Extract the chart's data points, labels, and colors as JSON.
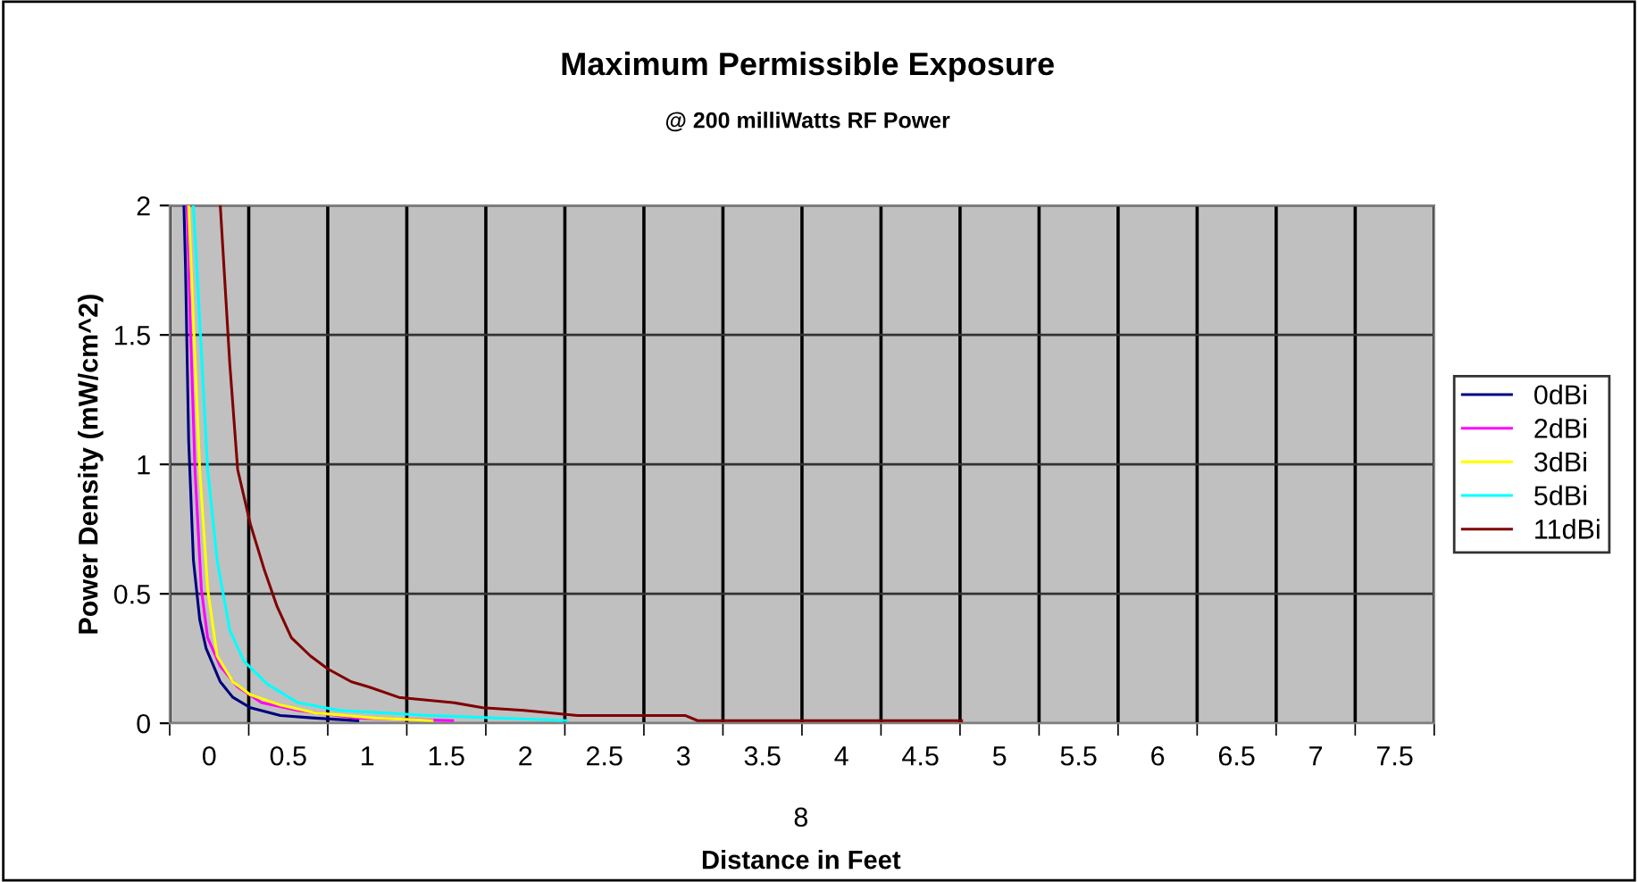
{
  "chart_data": {
    "type": "line",
    "title": "Maximum Permissible Exposure",
    "subtitle": "@ 200 milliWatts RF Power",
    "xlabel": "Distance in Feet",
    "ylabel": "Power Density (mW/cm^2)",
    "annotations": [
      "8"
    ],
    "xlim": [
      -0.25,
      7.75
    ],
    "ylim": [
      0,
      2
    ],
    "yticks": [
      0,
      0.5,
      1,
      1.5,
      2
    ],
    "xticks": [
      {
        "value": -0.25,
        "label": null
      },
      0,
      {
        "value": 0.25,
        "label": null
      },
      0.5,
      {
        "value": 0.75,
        "label": null
      },
      1,
      {
        "value": 1.25,
        "label": null
      },
      1.5,
      {
        "value": 1.75,
        "label": null
      },
      2,
      {
        "value": 2.25,
        "label": null
      },
      2.5,
      {
        "value": 2.75,
        "label": null
      },
      3,
      {
        "value": 3.25,
        "label": null
      },
      3.5,
      {
        "value": 3.75,
        "label": null
      },
      4,
      {
        "value": 4.25,
        "label": null
      },
      4.5,
      {
        "value": 4.75,
        "label": null
      },
      5,
      {
        "value": 5.25,
        "label": null
      },
      5.5,
      {
        "value": 5.75,
        "label": null
      },
      6,
      {
        "value": 6.25,
        "label": null
      },
      6.5,
      {
        "value": 6.75,
        "label": null
      },
      7,
      {
        "value": 7.25,
        "label": null
      },
      7.5,
      {
        "value": 7.75,
        "label": null
      }
    ],
    "grid": true,
    "legend": "right",
    "marker": "none",
    "line_style": "solid",
    "series": [
      {
        "name": "0dBi",
        "color": "#000080",
        "x": [
          -0.16,
          -0.15,
          -0.13,
          -0.1,
          -0.06,
          -0.02,
          0.07,
          0.15,
          0.26,
          0.45,
          0.67,
          0.94
        ],
        "values": [
          2,
          1.76,
          1.09,
          0.63,
          0.4,
          0.29,
          0.16,
          0.1,
          0.06,
          0.03,
          0.02,
          0.01
        ]
      },
      {
        "name": "2dBi",
        "color": "#ff00ff",
        "x": [
          -0.14,
          -0.12,
          -0.09,
          -0.05,
          -0.01,
          0.07,
          0.18,
          0.33,
          0.56,
          0.94,
          1.54
        ],
        "values": [
          2,
          1.55,
          0.98,
          0.52,
          0.33,
          0.22,
          0.14,
          0.08,
          0.05,
          0.02,
          0.01
        ]
      },
      {
        "name": "3dBi",
        "color": "#ffff00",
        "x": [
          -0.13,
          -0.1,
          -0.06,
          -0.01,
          0.05,
          0.15,
          0.26,
          0.45,
          0.67,
          1.05,
          1.41
        ],
        "values": [
          2,
          1.55,
          0.98,
          0.52,
          0.26,
          0.16,
          0.11,
          0.07,
          0.04,
          0.02,
          0.01
        ]
      },
      {
        "name": "5dBi",
        "color": "#00ffff",
        "x": [
          -0.1,
          -0.06,
          -0.01,
          0.05,
          0.13,
          0.22,
          0.37,
          0.56,
          0.82,
          1.39,
          2.26
        ],
        "values": [
          2,
          1.55,
          0.98,
          0.63,
          0.36,
          0.24,
          0.15,
          0.08,
          0.05,
          0.03,
          0.01
        ]
      },
      {
        "name": "11dBi",
        "color": "#800000",
        "x": [
          0.07,
          0.13,
          0.18,
          0.26,
          0.35,
          0.43,
          0.52,
          0.64,
          0.75,
          0.9,
          1.01,
          1.2,
          1.54,
          1.73,
          1.99,
          2.33,
          3.01,
          3.09,
          4.76
        ],
        "values": [
          2,
          1.39,
          0.98,
          0.77,
          0.59,
          0.45,
          0.33,
          0.26,
          0.21,
          0.16,
          0.14,
          0.1,
          0.08,
          0.06,
          0.05,
          0.03,
          0.03,
          0.01,
          0.01
        ]
      }
    ]
  }
}
